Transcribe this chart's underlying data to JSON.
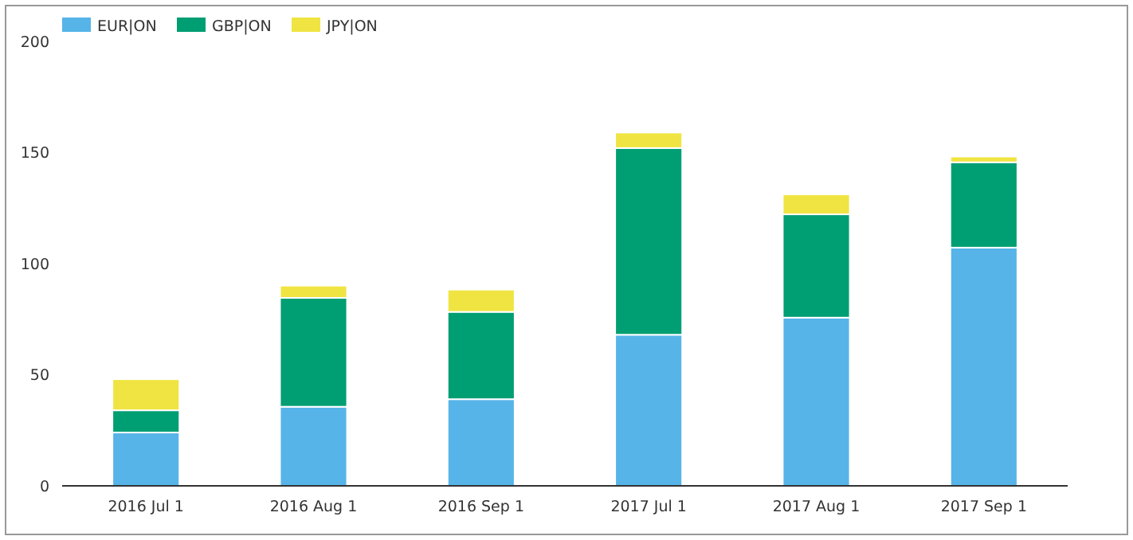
{
  "chart_data": {
    "type": "bar",
    "stacked": true,
    "categories": [
      "2016 Jul 1",
      "2016 Aug 1",
      "2016 Sep 1",
      "2017 Jul 1",
      "2017 Aug 1",
      "2017 Sep 1"
    ],
    "series": [
      {
        "name": "EUR|ON",
        "color": "#56b4e9",
        "values": [
          24,
          35.6,
          39,
          68,
          75.7,
          107.2
        ]
      },
      {
        "name": "GBP|ON",
        "color": "#009e73",
        "values": [
          10,
          49,
          39.3,
          84,
          46.5,
          38.4
        ]
      },
      {
        "name": "JPY|ON",
        "color": "#f0e442",
        "values": [
          14,
          5.5,
          10,
          7,
          9,
          2.6
        ]
      }
    ],
    "ylim": [
      0,
      200
    ],
    "yticks": [
      0,
      50,
      100,
      150,
      200
    ],
    "grid": false,
    "legend": "top left"
  }
}
